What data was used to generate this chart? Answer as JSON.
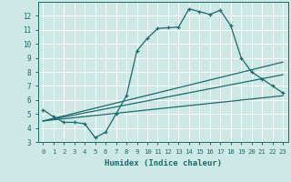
{
  "xlabel": "Humidex (Indice chaleur)",
  "ylabel": "",
  "xlim": [
    -0.5,
    23.5
  ],
  "ylim": [
    3,
    13
  ],
  "xticks": [
    0,
    1,
    2,
    3,
    4,
    5,
    6,
    7,
    8,
    9,
    10,
    11,
    12,
    13,
    14,
    15,
    16,
    17,
    18,
    19,
    20,
    21,
    22,
    23
  ],
  "yticks": [
    3,
    4,
    5,
    6,
    7,
    8,
    9,
    10,
    11,
    12
  ],
  "background_color": "#cde8e5",
  "grid_color": "#ffffff",
  "line_color": "#1a6b6b",
  "series1_x": [
    0,
    1,
    2,
    3,
    4,
    5,
    6,
    7,
    8,
    9,
    10,
    11,
    12,
    13,
    14,
    15,
    16,
    17,
    18,
    19,
    20,
    21,
    22,
    23
  ],
  "series1_y": [
    5.3,
    4.8,
    4.4,
    4.4,
    4.3,
    3.3,
    3.7,
    5.0,
    6.3,
    9.5,
    10.4,
    11.1,
    11.15,
    11.2,
    12.5,
    12.3,
    12.1,
    12.4,
    11.3,
    9.0,
    8.0,
    7.5,
    7.0,
    6.5
  ],
  "series2_x": [
    0,
    23
  ],
  "series2_y": [
    4.5,
    6.3
  ],
  "series3_x": [
    0,
    23
  ],
  "series3_y": [
    4.5,
    7.8
  ],
  "series4_x": [
    0,
    23
  ],
  "series4_y": [
    4.5,
    8.7
  ]
}
